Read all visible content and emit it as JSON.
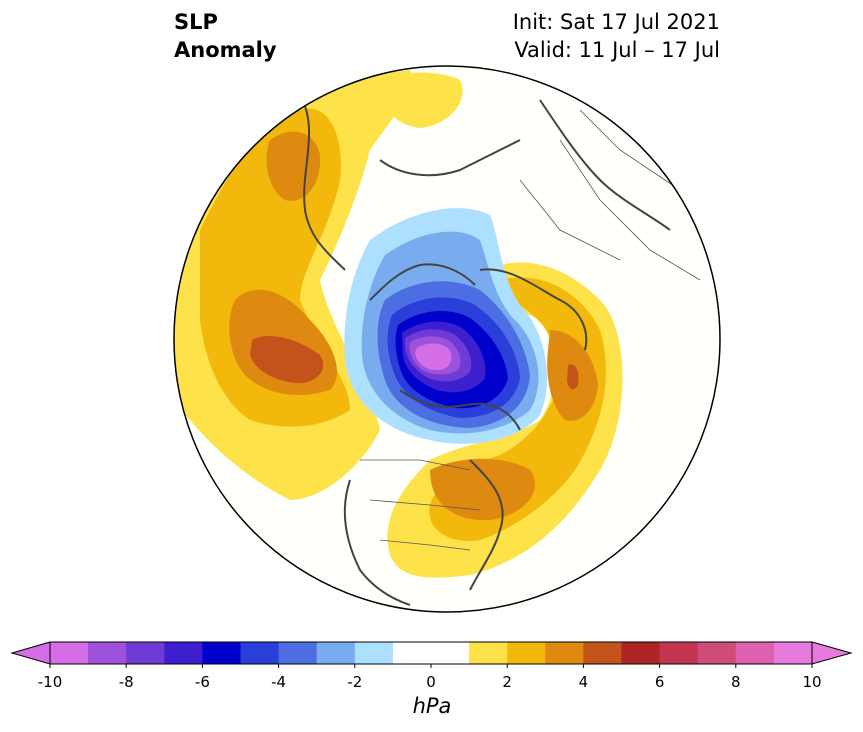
{
  "header": {
    "title_line1": "SLP",
    "title_line2": "Anomaly",
    "init": "Init: Sat 17 Jul 2021",
    "valid": "Valid: 11 Jul – 17 Jul"
  },
  "map": {
    "projection": "north-polar-stereographic",
    "field": "sea level pressure anomaly"
  },
  "colorbar": {
    "unit": "hPa",
    "extend": "both",
    "tick_labels": [
      "-10",
      "-8",
      "-6",
      "-4",
      "-2",
      "0",
      "2",
      "4",
      "6",
      "8",
      "10"
    ],
    "levels": [
      -10,
      -9,
      -8,
      -7,
      -6,
      -5,
      -4,
      -3,
      -2,
      -1,
      1,
      2,
      3,
      4,
      5,
      6,
      7,
      8,
      9,
      10
    ],
    "colors": [
      "#d56de6",
      "#9e52dc",
      "#6f3bd6",
      "#3d1fcf",
      "#0000cd",
      "#2a3ed9",
      "#4d6ee3",
      "#79acef",
      "#addfff",
      "#ffffff",
      "#fde24a",
      "#f2b80b",
      "#de8a10",
      "#c4531b",
      "#ad2423",
      "#c33650",
      "#cf4b7a",
      "#de61b0",
      "#e77add"
    ],
    "under_color": "#d56de6",
    "over_color": "#e77add"
  }
}
